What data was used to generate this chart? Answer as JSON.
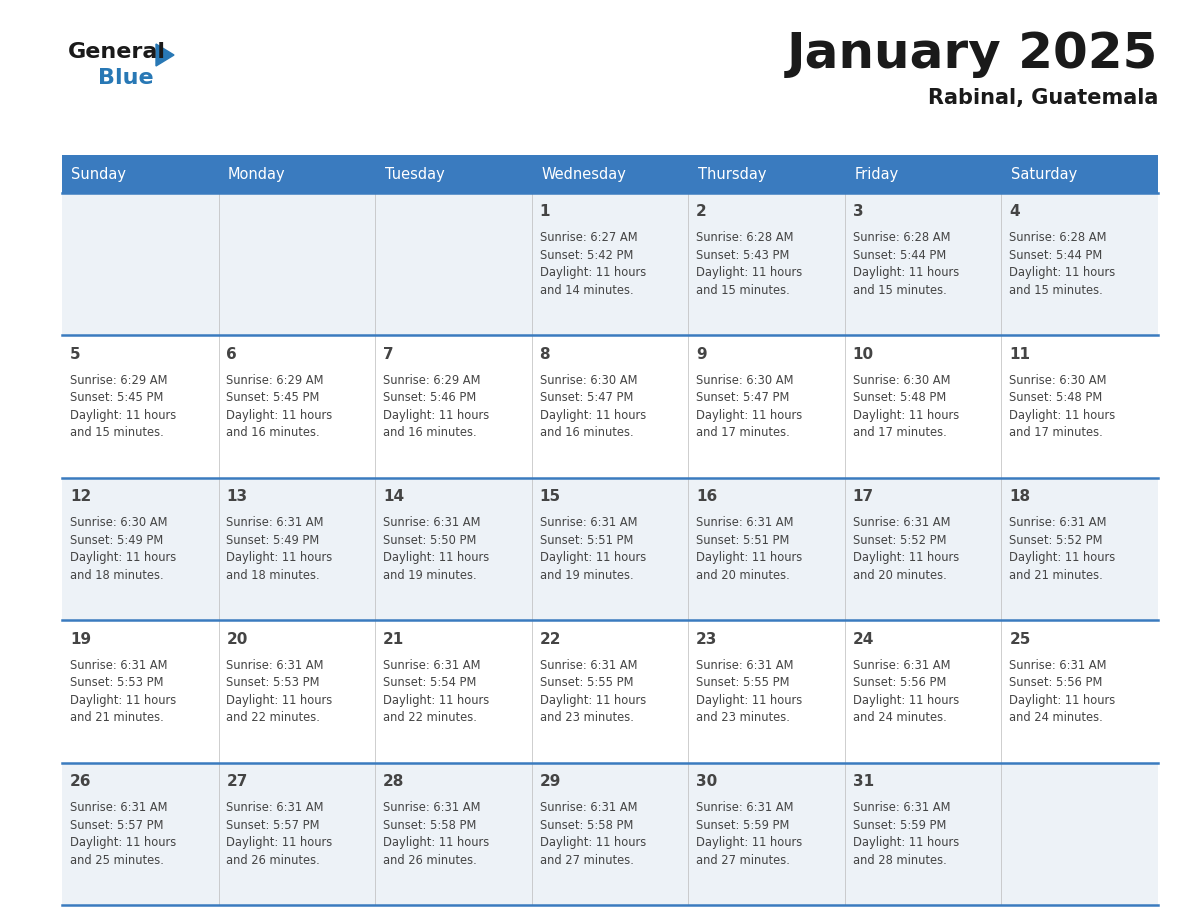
{
  "title": "January 2025",
  "subtitle": "Rabinal, Guatemala",
  "header_color": "#3a7bbf",
  "header_text_color": "#ffffff",
  "border_color": "#3a7bbf",
  "text_color": "#444444",
  "days_of_week": [
    "Sunday",
    "Monday",
    "Tuesday",
    "Wednesday",
    "Thursday",
    "Friday",
    "Saturday"
  ],
  "row_bg_colors": [
    "#edf2f7",
    "#ffffff",
    "#edf2f7",
    "#ffffff",
    "#edf2f7"
  ],
  "calendar_data": [
    [
      {
        "day": "",
        "info": ""
      },
      {
        "day": "",
        "info": ""
      },
      {
        "day": "",
        "info": ""
      },
      {
        "day": "1",
        "info": "Sunrise: 6:27 AM\nSunset: 5:42 PM\nDaylight: 11 hours\nand 14 minutes."
      },
      {
        "day": "2",
        "info": "Sunrise: 6:28 AM\nSunset: 5:43 PM\nDaylight: 11 hours\nand 15 minutes."
      },
      {
        "day": "3",
        "info": "Sunrise: 6:28 AM\nSunset: 5:44 PM\nDaylight: 11 hours\nand 15 minutes."
      },
      {
        "day": "4",
        "info": "Sunrise: 6:28 AM\nSunset: 5:44 PM\nDaylight: 11 hours\nand 15 minutes."
      }
    ],
    [
      {
        "day": "5",
        "info": "Sunrise: 6:29 AM\nSunset: 5:45 PM\nDaylight: 11 hours\nand 15 minutes."
      },
      {
        "day": "6",
        "info": "Sunrise: 6:29 AM\nSunset: 5:45 PM\nDaylight: 11 hours\nand 16 minutes."
      },
      {
        "day": "7",
        "info": "Sunrise: 6:29 AM\nSunset: 5:46 PM\nDaylight: 11 hours\nand 16 minutes."
      },
      {
        "day": "8",
        "info": "Sunrise: 6:30 AM\nSunset: 5:47 PM\nDaylight: 11 hours\nand 16 minutes."
      },
      {
        "day": "9",
        "info": "Sunrise: 6:30 AM\nSunset: 5:47 PM\nDaylight: 11 hours\nand 17 minutes."
      },
      {
        "day": "10",
        "info": "Sunrise: 6:30 AM\nSunset: 5:48 PM\nDaylight: 11 hours\nand 17 minutes."
      },
      {
        "day": "11",
        "info": "Sunrise: 6:30 AM\nSunset: 5:48 PM\nDaylight: 11 hours\nand 17 minutes."
      }
    ],
    [
      {
        "day": "12",
        "info": "Sunrise: 6:30 AM\nSunset: 5:49 PM\nDaylight: 11 hours\nand 18 minutes."
      },
      {
        "day": "13",
        "info": "Sunrise: 6:31 AM\nSunset: 5:49 PM\nDaylight: 11 hours\nand 18 minutes."
      },
      {
        "day": "14",
        "info": "Sunrise: 6:31 AM\nSunset: 5:50 PM\nDaylight: 11 hours\nand 19 minutes."
      },
      {
        "day": "15",
        "info": "Sunrise: 6:31 AM\nSunset: 5:51 PM\nDaylight: 11 hours\nand 19 minutes."
      },
      {
        "day": "16",
        "info": "Sunrise: 6:31 AM\nSunset: 5:51 PM\nDaylight: 11 hours\nand 20 minutes."
      },
      {
        "day": "17",
        "info": "Sunrise: 6:31 AM\nSunset: 5:52 PM\nDaylight: 11 hours\nand 20 minutes."
      },
      {
        "day": "18",
        "info": "Sunrise: 6:31 AM\nSunset: 5:52 PM\nDaylight: 11 hours\nand 21 minutes."
      }
    ],
    [
      {
        "day": "19",
        "info": "Sunrise: 6:31 AM\nSunset: 5:53 PM\nDaylight: 11 hours\nand 21 minutes."
      },
      {
        "day": "20",
        "info": "Sunrise: 6:31 AM\nSunset: 5:53 PM\nDaylight: 11 hours\nand 22 minutes."
      },
      {
        "day": "21",
        "info": "Sunrise: 6:31 AM\nSunset: 5:54 PM\nDaylight: 11 hours\nand 22 minutes."
      },
      {
        "day": "22",
        "info": "Sunrise: 6:31 AM\nSunset: 5:55 PM\nDaylight: 11 hours\nand 23 minutes."
      },
      {
        "day": "23",
        "info": "Sunrise: 6:31 AM\nSunset: 5:55 PM\nDaylight: 11 hours\nand 23 minutes."
      },
      {
        "day": "24",
        "info": "Sunrise: 6:31 AM\nSunset: 5:56 PM\nDaylight: 11 hours\nand 24 minutes."
      },
      {
        "day": "25",
        "info": "Sunrise: 6:31 AM\nSunset: 5:56 PM\nDaylight: 11 hours\nand 24 minutes."
      }
    ],
    [
      {
        "day": "26",
        "info": "Sunrise: 6:31 AM\nSunset: 5:57 PM\nDaylight: 11 hours\nand 25 minutes."
      },
      {
        "day": "27",
        "info": "Sunrise: 6:31 AM\nSunset: 5:57 PM\nDaylight: 11 hours\nand 26 minutes."
      },
      {
        "day": "28",
        "info": "Sunrise: 6:31 AM\nSunset: 5:58 PM\nDaylight: 11 hours\nand 26 minutes."
      },
      {
        "day": "29",
        "info": "Sunrise: 6:31 AM\nSunset: 5:58 PM\nDaylight: 11 hours\nand 27 minutes."
      },
      {
        "day": "30",
        "info": "Sunrise: 6:31 AM\nSunset: 5:59 PM\nDaylight: 11 hours\nand 27 minutes."
      },
      {
        "day": "31",
        "info": "Sunrise: 6:31 AM\nSunset: 5:59 PM\nDaylight: 11 hours\nand 28 minutes."
      },
      {
        "day": "",
        "info": ""
      }
    ]
  ],
  "logo_general_color": "#1a1a1a",
  "logo_blue_color": "#2878b5",
  "logo_triangle_color": "#2878b5",
  "title_fontsize": 36,
  "subtitle_fontsize": 15,
  "header_fontsize": 10.5,
  "day_num_fontsize": 11,
  "info_fontsize": 8.3
}
